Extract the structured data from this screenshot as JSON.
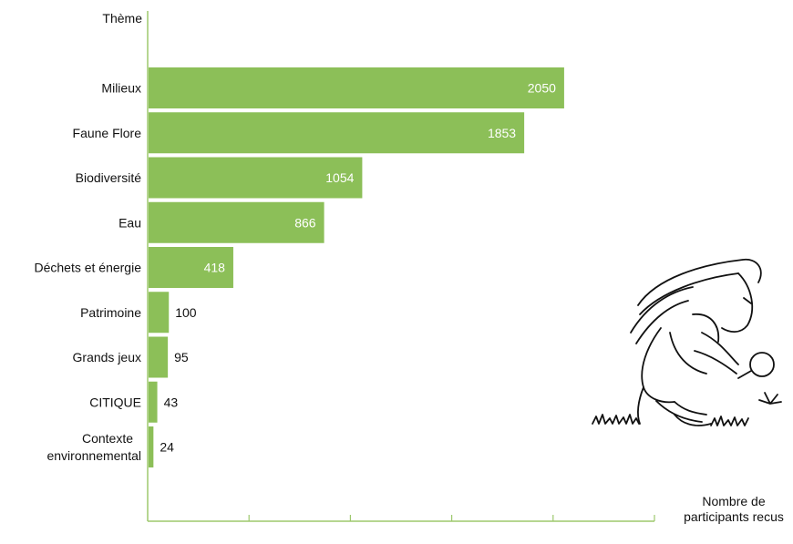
{
  "chart_data": {
    "type": "bar",
    "orientation": "horizontal",
    "categories": [
      "Milieux",
      "Faune Flore",
      "Biodiversité",
      "Eau",
      "Déchets et énergie",
      "Patrimoine",
      "Grands jeux",
      "CITIQUE",
      "Contexte environnemental"
    ],
    "values": [
      2050,
      1853,
      1054,
      866,
      418,
      100,
      95,
      43,
      24
    ],
    "ylabel": "Thème",
    "xlabel": "Nombre de participants recus",
    "xlim": [
      0,
      2500
    ],
    "grid": false,
    "bar_color": "#8cbf58"
  },
  "illustration": {
    "icon": "child-with-magnifying-glass-icon"
  }
}
